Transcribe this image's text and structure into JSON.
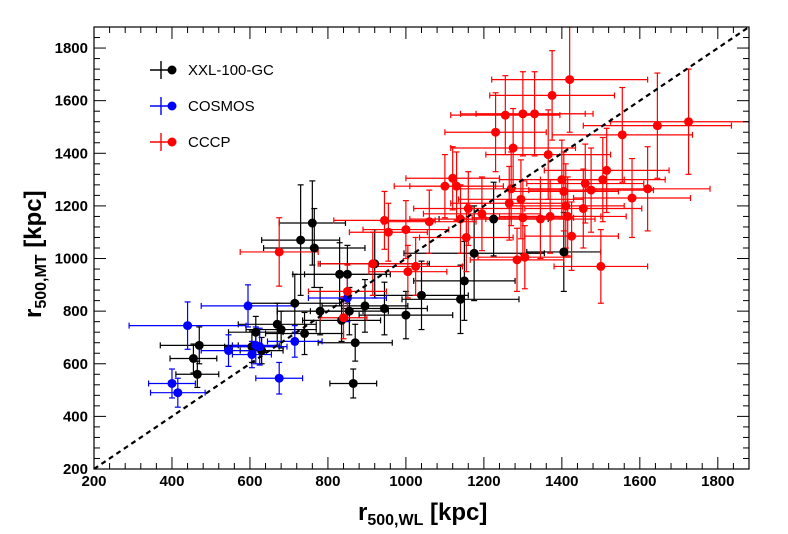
{
  "chart_data": {
    "type": "scatter",
    "xlabel": {
      "main": "r",
      "sub": "500,WL",
      "unit": "[kpc]"
    },
    "ylabel": {
      "main": "r",
      "sub": "500,MT",
      "unit": "[kpc]"
    },
    "xlim": [
      200,
      1880
    ],
    "ylim": [
      200,
      1880
    ],
    "x_ticks": [
      200,
      400,
      600,
      800,
      1000,
      1200,
      1400,
      1600,
      1800
    ],
    "y_ticks": [
      200,
      400,
      600,
      800,
      1000,
      1200,
      1400,
      1600,
      1800
    ],
    "reference_line": {
      "label": "1:1",
      "style": "dashed",
      "color": "#000000"
    },
    "legend_position": "top-left",
    "series": [
      {
        "name": "XXL-100-GC",
        "color": "#000000",
        "points": [
          {
            "x": 455,
            "y": 620,
            "xerr": 60,
            "yerr": 55
          },
          {
            "x": 465,
            "y": 560,
            "xerr": 55,
            "yerr": 50
          },
          {
            "x": 470,
            "y": 670,
            "xerr": 100,
            "yerr": 70
          },
          {
            "x": 605,
            "y": 665,
            "xerr": 70,
            "yerr": 60
          },
          {
            "x": 615,
            "y": 720,
            "xerr": 70,
            "yerr": 60
          },
          {
            "x": 630,
            "y": 650,
            "xerr": 55,
            "yerr": 50
          },
          {
            "x": 670,
            "y": 750,
            "xerr": 100,
            "yerr": 80
          },
          {
            "x": 680,
            "y": 730,
            "xerr": 90,
            "yerr": 70
          },
          {
            "x": 715,
            "y": 830,
            "xerr": 120,
            "yerr": 110
          },
          {
            "x": 730,
            "y": 1070,
            "xerr": 100,
            "yerr": 210
          },
          {
            "x": 740,
            "y": 715,
            "xerr": 100,
            "yerr": 80
          },
          {
            "x": 760,
            "y": 1135,
            "xerr": 85,
            "yerr": 160
          },
          {
            "x": 765,
            "y": 1040,
            "xerr": 130,
            "yerr": 150
          },
          {
            "x": 780,
            "y": 800,
            "xerr": 110,
            "yerr": 90
          },
          {
            "x": 830,
            "y": 940,
            "xerr": 120,
            "yerr": 120
          },
          {
            "x": 835,
            "y": 765,
            "xerr": 100,
            "yerr": 80
          },
          {
            "x": 850,
            "y": 940,
            "xerr": 110,
            "yerr": 110
          },
          {
            "x": 855,
            "y": 800,
            "xerr": 100,
            "yerr": 90
          },
          {
            "x": 865,
            "y": 525,
            "xerr": 60,
            "yerr": 55
          },
          {
            "x": 870,
            "y": 680,
            "xerr": 95,
            "yerr": 70
          },
          {
            "x": 895,
            "y": 820,
            "xerr": 110,
            "yerr": 100
          },
          {
            "x": 920,
            "y": 980,
            "xerr": 140,
            "yerr": 130
          },
          {
            "x": 945,
            "y": 810,
            "xerr": 110,
            "yerr": 100
          },
          {
            "x": 1000,
            "y": 785,
            "xerr": 120,
            "yerr": 90
          },
          {
            "x": 1040,
            "y": 860,
            "xerr": 120,
            "yerr": 130
          },
          {
            "x": 1140,
            "y": 845,
            "xerr": 150,
            "yerr": 130
          },
          {
            "x": 1150,
            "y": 915,
            "xerr": 130,
            "yerr": 150
          },
          {
            "x": 1175,
            "y": 1020,
            "xerr": 180,
            "yerr": 180
          },
          {
            "x": 1225,
            "y": 1150,
            "xerr": 140,
            "yerr": 140
          },
          {
            "x": 1405,
            "y": 1025,
            "xerr": 95,
            "yerr": 150
          }
        ]
      },
      {
        "name": "COSMOS",
        "color": "#0000ff",
        "points": [
          {
            "x": 400,
            "y": 525,
            "xerr": 60,
            "yerr": 55
          },
          {
            "x": 415,
            "y": 490,
            "xerr": 70,
            "yerr": 55
          },
          {
            "x": 440,
            "y": 745,
            "xerr": 150,
            "yerr": 90
          },
          {
            "x": 545,
            "y": 650,
            "xerr": 70,
            "yerr": 60
          },
          {
            "x": 595,
            "y": 820,
            "xerr": 120,
            "yerr": 80
          },
          {
            "x": 605,
            "y": 635,
            "xerr": 50,
            "yerr": 50
          },
          {
            "x": 615,
            "y": 670,
            "xerr": 60,
            "yerr": 70
          },
          {
            "x": 625,
            "y": 665,
            "xerr": 70,
            "yerr": 70
          },
          {
            "x": 675,
            "y": 545,
            "xerr": 60,
            "yerr": 60
          },
          {
            "x": 715,
            "y": 685,
            "xerr": 70,
            "yerr": 60
          },
          {
            "x": 850,
            "y": 850,
            "xerr": 100,
            "yerr": 90
          }
        ]
      },
      {
        "name": "CCCP",
        "color": "#ff0000",
        "points": [
          {
            "x": 675,
            "y": 1025,
            "xerr": 100,
            "yerr": 130
          },
          {
            "x": 840,
            "y": 775,
            "xerr": 60,
            "yerr": 80
          },
          {
            "x": 850,
            "y": 875,
            "xerr": 100,
            "yerr": 100
          },
          {
            "x": 915,
            "y": 980,
            "xerr": 140,
            "yerr": 120
          },
          {
            "x": 945,
            "y": 1145,
            "xerr": 130,
            "yerr": 110
          },
          {
            "x": 955,
            "y": 1100,
            "xerr": 100,
            "yerr": 110
          },
          {
            "x": 1000,
            "y": 1110,
            "xerr": 110,
            "yerr": 110
          },
          {
            "x": 1005,
            "y": 950,
            "xerr": 100,
            "yerr": 100
          },
          {
            "x": 1025,
            "y": 970,
            "xerr": 120,
            "yerr": 110
          },
          {
            "x": 1060,
            "y": 1140,
            "xerr": 120,
            "yerr": 120
          },
          {
            "x": 1100,
            "y": 1275,
            "xerr": 130,
            "yerr": 120
          },
          {
            "x": 1120,
            "y": 1305,
            "xerr": 120,
            "yerr": 120
          },
          {
            "x": 1130,
            "y": 1275,
            "xerr": 120,
            "yerr": 130
          },
          {
            "x": 1140,
            "y": 1150,
            "xerr": 130,
            "yerr": 130
          },
          {
            "x": 1155,
            "y": 1080,
            "xerr": 120,
            "yerr": 130
          },
          {
            "x": 1160,
            "y": 1190,
            "xerr": 140,
            "yerr": 140
          },
          {
            "x": 1195,
            "y": 1170,
            "xerr": 150,
            "yerr": 140
          },
          {
            "x": 1230,
            "y": 1480,
            "xerr": 130,
            "yerr": 150
          },
          {
            "x": 1255,
            "y": 1545,
            "xerr": 140,
            "yerr": 150
          },
          {
            "x": 1265,
            "y": 1210,
            "xerr": 150,
            "yerr": 140
          },
          {
            "x": 1270,
            "y": 1265,
            "xerr": 140,
            "yerr": 140
          },
          {
            "x": 1275,
            "y": 1420,
            "xerr": 160,
            "yerr": 150
          },
          {
            "x": 1285,
            "y": 995,
            "xerr": 120,
            "yerr": 120
          },
          {
            "x": 1295,
            "y": 1225,
            "xerr": 160,
            "yerr": 150
          },
          {
            "x": 1300,
            "y": 1550,
            "xerr": 160,
            "yerr": 160
          },
          {
            "x": 1300,
            "y": 1155,
            "xerr": 130,
            "yerr": 140
          },
          {
            "x": 1305,
            "y": 1005,
            "xerr": 120,
            "yerr": 120
          },
          {
            "x": 1330,
            "y": 1550,
            "xerr": 150,
            "yerr": 160
          },
          {
            "x": 1345,
            "y": 1150,
            "xerr": 140,
            "yerr": 150
          },
          {
            "x": 1365,
            "y": 1395,
            "xerr": 160,
            "yerr": 170
          },
          {
            "x": 1370,
            "y": 1160,
            "xerr": 130,
            "yerr": 140
          },
          {
            "x": 1375,
            "y": 1620,
            "xerr": 160,
            "yerr": 170
          },
          {
            "x": 1400,
            "y": 1300,
            "xerr": 160,
            "yerr": 150
          },
          {
            "x": 1405,
            "y": 1255,
            "xerr": 140,
            "yerr": 150
          },
          {
            "x": 1410,
            "y": 1200,
            "xerr": 150,
            "yerr": 160
          },
          {
            "x": 1415,
            "y": 1160,
            "xerr": 150,
            "yerr": 150
          },
          {
            "x": 1420,
            "y": 1680,
            "xerr": 200,
            "yerr": 200
          },
          {
            "x": 1425,
            "y": 1085,
            "xerr": 120,
            "yerr": 130
          },
          {
            "x": 1455,
            "y": 1190,
            "xerr": 150,
            "yerr": 150
          },
          {
            "x": 1460,
            "y": 1285,
            "xerr": 150,
            "yerr": 150
          },
          {
            "x": 1475,
            "y": 1260,
            "xerr": 160,
            "yerr": 160
          },
          {
            "x": 1500,
            "y": 970,
            "xerr": 120,
            "yerr": 140
          },
          {
            "x": 1505,
            "y": 1300,
            "xerr": 160,
            "yerr": 160
          },
          {
            "x": 1515,
            "y": 1335,
            "xerr": 160,
            "yerr": 160
          },
          {
            "x": 1555,
            "y": 1470,
            "xerr": 180,
            "yerr": 180
          },
          {
            "x": 1580,
            "y": 1230,
            "xerr": 150,
            "yerr": 150
          },
          {
            "x": 1620,
            "y": 1265,
            "xerr": 160,
            "yerr": 160
          },
          {
            "x": 1645,
            "y": 1505,
            "xerr": 190,
            "yerr": 200
          },
          {
            "x": 1725,
            "y": 1520,
            "xerr": 200,
            "yerr": 200
          }
        ]
      }
    ]
  }
}
